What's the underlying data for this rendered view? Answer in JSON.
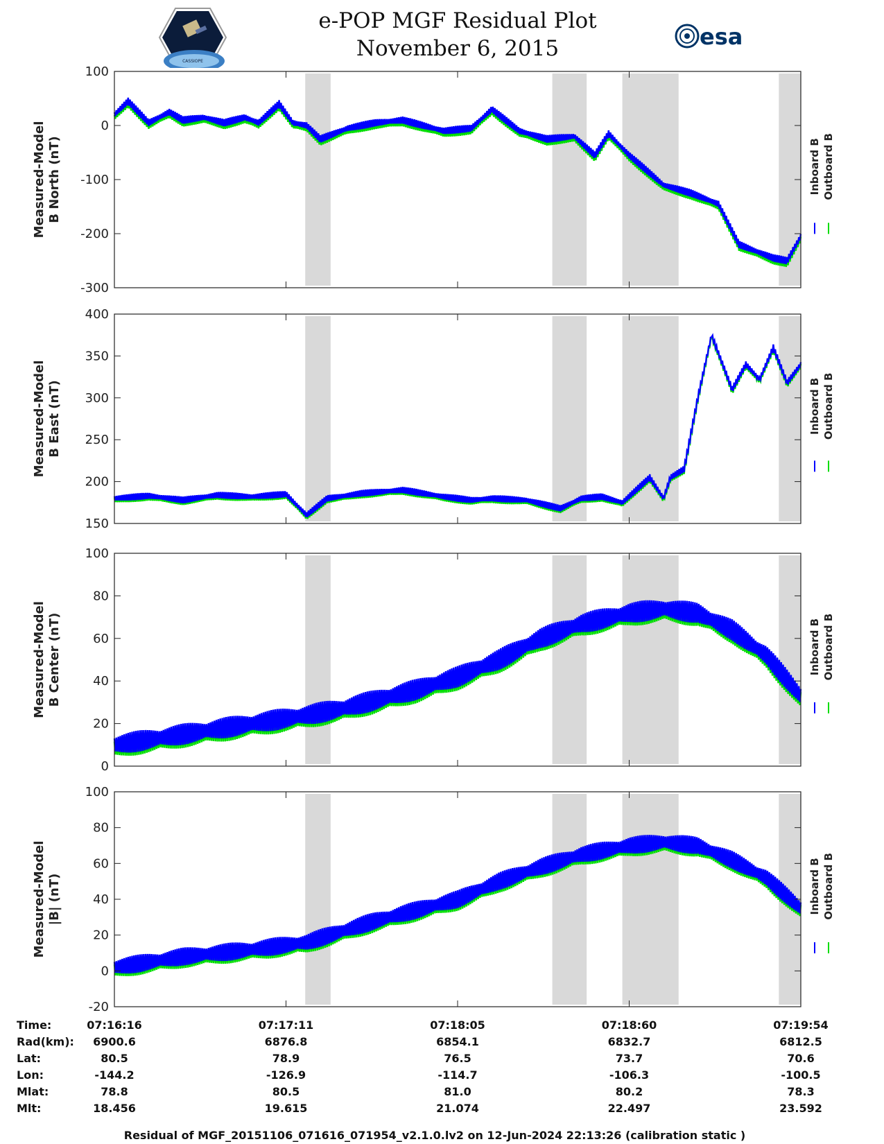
{
  "header": {
    "title": "e-POP MGF Residual Plot",
    "date": "November 6, 2015",
    "logo_left_text": "CASSIOPE",
    "logo_right_text": "esa"
  },
  "chart_data": [
    {
      "type": "line",
      "ylabel_line1": "Measured-Model",
      "ylabel_line2": "B North (nT)",
      "ylim": [
        -300,
        100
      ],
      "yticks": [
        100,
        0,
        -100,
        -200,
        -300
      ],
      "legend": [
        "Inboard B",
        "Outboard B"
      ],
      "band_half_width": 7,
      "series_offset": 5,
      "x": [
        0,
        0.02,
        0.05,
        0.08,
        0.1,
        0.13,
        0.16,
        0.19,
        0.21,
        0.24,
        0.26,
        0.28,
        0.3,
        0.34,
        0.38,
        0.42,
        0.45,
        0.48,
        0.52,
        0.55,
        0.59,
        0.63,
        0.67,
        0.7,
        0.72,
        0.75,
        0.8,
        0.84,
        0.88,
        0.91,
        0.94,
        0.96,
        0.98,
        1.0
      ],
      "y": [
        20,
        45,
        5,
        25,
        10,
        15,
        5,
        15,
        5,
        40,
        5,
        0,
        -25,
        -5,
        5,
        10,
        0,
        -10,
        -5,
        30,
        -10,
        -25,
        -20,
        -55,
        -15,
        -55,
        -110,
        -125,
        -145,
        -220,
        -235,
        -245,
        -250,
        -205
      ]
    },
    {
      "type": "line",
      "ylabel_line1": "Measured-Model",
      "ylabel_line2": "B East (nT)",
      "ylim": [
        150,
        400
      ],
      "yticks": [
        400,
        350,
        300,
        250,
        200,
        150
      ],
      "legend": [
        "Inboard B",
        "Outboard B"
      ],
      "band_half_width": 4,
      "series_offset": 2,
      "x": [
        0,
        0.05,
        0.1,
        0.15,
        0.2,
        0.25,
        0.28,
        0.31,
        0.36,
        0.42,
        0.48,
        0.52,
        0.55,
        0.6,
        0.65,
        0.68,
        0.71,
        0.74,
        0.78,
        0.8,
        0.81,
        0.83,
        0.85,
        0.87,
        0.9,
        0.92,
        0.94,
        0.96,
        0.98,
        1.0
      ],
      "y": [
        180,
        183,
        178,
        184,
        182,
        185,
        160,
        180,
        186,
        190,
        182,
        178,
        180,
        178,
        168,
        180,
        182,
        175,
        205,
        180,
        205,
        215,
        300,
        375,
        310,
        340,
        322,
        360,
        318,
        340
      ]
    },
    {
      "type": "line",
      "ylabel_line1": "Measured-Model",
      "ylabel_line2": "B Center (nT)",
      "ylim": [
        0,
        100
      ],
      "yticks": [
        100,
        80,
        60,
        40,
        20,
        0
      ],
      "legend": [
        "Inboard B",
        "Outboard B"
      ],
      "band_half_width": 5,
      "series_offset": 1.5,
      "x": [
        0,
        0.1,
        0.2,
        0.28,
        0.33,
        0.38,
        0.44,
        0.5,
        0.56,
        0.62,
        0.68,
        0.75,
        0.8,
        0.85,
        0.9,
        0.95,
        1.0
      ],
      "y": [
        10,
        15,
        20,
        24,
        27,
        31,
        36,
        42,
        50,
        60,
        67,
        72,
        74,
        72,
        64,
        52,
        33
      ]
    },
    {
      "type": "line",
      "ylabel_line1": "Measured-Model",
      "ylabel_line2": "|B| (nT)",
      "ylim": [
        -20,
        100
      ],
      "yticks": [
        100,
        80,
        60,
        40,
        20,
        0,
        -20
      ],
      "legend": [
        "Inboard B",
        "Outboard B"
      ],
      "band_half_width": 5,
      "series_offset": 1.5,
      "x": [
        0,
        0.1,
        0.2,
        0.28,
        0.33,
        0.38,
        0.44,
        0.5,
        0.56,
        0.62,
        0.68,
        0.75,
        0.8,
        0.85,
        0.9,
        0.95,
        1.0
      ],
      "y": [
        2,
        8,
        12,
        16,
        22,
        28,
        34,
        40,
        50,
        58,
        65,
        70,
        72,
        70,
        62,
        52,
        35
      ]
    }
  ],
  "shading_intervals": [
    [
      0.278,
      0.315
    ],
    [
      0.638,
      0.688
    ],
    [
      0.74,
      0.822
    ],
    [
      0.968,
      1.0
    ]
  ],
  "time_axis": {
    "tick_fractions": [
      0,
      0.25,
      0.5,
      0.75,
      1.0
    ],
    "labels": {
      "time": "Time:",
      "rad": "Rad(km):",
      "lat": "Lat:",
      "lon": "Lon:",
      "mlat": "Mlat:",
      "mlt": "Mlt:"
    },
    "columns": [
      {
        "time": "07:16:16",
        "rad": "6900.6",
        "lat": "80.5",
        "lon": "-144.2",
        "mlat": "78.8",
        "mlt": "18.456"
      },
      {
        "time": "07:17:11",
        "rad": "6876.8",
        "lat": "78.9",
        "lon": "-126.9",
        "mlat": "80.5",
        "mlt": "19.615"
      },
      {
        "time": "07:18:05",
        "rad": "6854.1",
        "lat": "76.5",
        "lon": "-114.7",
        "mlat": "81.0",
        "mlt": "21.074"
      },
      {
        "time": "07:18:60",
        "rad": "6832.7",
        "lat": "73.7",
        "lon": "-106.3",
        "mlat": "80.2",
        "mlt": "22.497"
      },
      {
        "time": "07:19:54",
        "rad": "6812.5",
        "lat": "70.6",
        "lon": "-100.5",
        "mlat": "78.3",
        "mlt": "23.592"
      }
    ]
  },
  "footer": "Residual of MGF_20151106_071616_071954_v2.1.0.lv2 on 12-Jun-2024 22:13:26 (calibration static )",
  "colors": {
    "inboard": "#0000ff",
    "outboard": "#00dd00",
    "shade": "#d9d9d9"
  }
}
